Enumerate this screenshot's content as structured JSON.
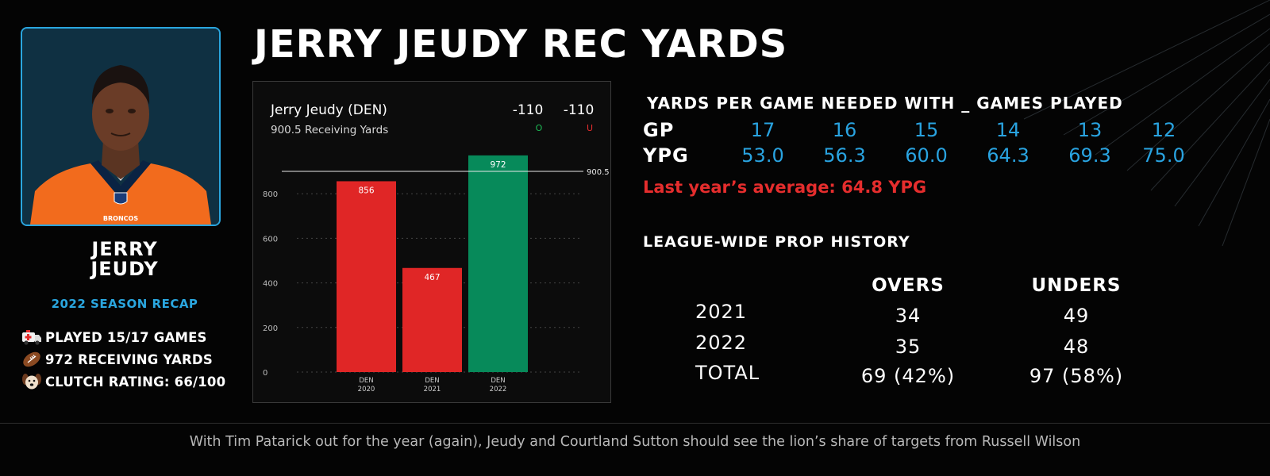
{
  "title": "JERRY JEUDY REC YARDS",
  "player": {
    "name_line1": "JERRY",
    "name_line2": "JEUDY",
    "season_label": "2022 SEASON RECAP",
    "jersey_text": "BRONCOS",
    "stats": [
      {
        "icon": "ambulance-icon",
        "text": "PLAYED 15/17 GAMES"
      },
      {
        "icon": "football-icon",
        "text": "972 RECEIVING YARDS"
      },
      {
        "icon": "dog-face-icon",
        "text": "CLUTCH RATING: 66/100"
      }
    ]
  },
  "chart_card": {
    "player": "Jerry Jeudy (DEN)",
    "line_label": "900.5 Receiving Yards",
    "over_odds": "-110",
    "under_odds": "-110",
    "over_letter": "O",
    "under_letter": "U",
    "over_color": "#1db954",
    "under_color": "#e52d2d"
  },
  "chart_data": {
    "type": "bar",
    "categories": [
      "DEN 2020",
      "DEN 2021",
      "DEN 2022"
    ],
    "category_lines": [
      [
        "DEN",
        "2020"
      ],
      [
        "DEN",
        "2021"
      ],
      [
        "DEN",
        "2022"
      ]
    ],
    "values": [
      856,
      467,
      972
    ],
    "bar_colors": [
      "#e02626",
      "#e02626",
      "#078a5a"
    ],
    "ylim": [
      0,
      1000
    ],
    "yticks": [
      0,
      200,
      400,
      600,
      800
    ],
    "reference_line": {
      "value": 900.5,
      "label": "900.5"
    },
    "grid": true,
    "title": "",
    "xlabel": "",
    "ylabel": ""
  },
  "ypg": {
    "heading": "YARDS PER GAME NEEDED WITH _ GAMES PLAYED",
    "gp_label": "GP",
    "ypg_label": "YPG",
    "gp": [
      "17",
      "16",
      "15",
      "14",
      "13",
      "12"
    ],
    "values": [
      "53.0",
      "56.3",
      "60.0",
      "64.3",
      "69.3",
      "75.0"
    ],
    "last_year": "Last year’s average: 64.8 YPG"
  },
  "history": {
    "heading": "LEAGUE-WIDE PROP HISTORY",
    "col_overs": "OVERS",
    "col_unders": "UNDERS",
    "rows": [
      {
        "label": "2021",
        "overs": "34",
        "unders": "49"
      },
      {
        "label": "2022",
        "overs": "35",
        "unders": "48"
      },
      {
        "label": "TOTAL",
        "overs": "69 (42%)",
        "unders": "97 (58%)"
      }
    ]
  },
  "caption": "With Tim Patarick out for the year (again), Jeudy and Courtland Sutton should see the lion’s share of targets from Russell Wilson",
  "colors": {
    "accent_blue": "#2aa6df",
    "alert_red": "#e52d2d",
    "broncos_orange": "#f26b1d",
    "broncos_navy": "#0a2343"
  }
}
